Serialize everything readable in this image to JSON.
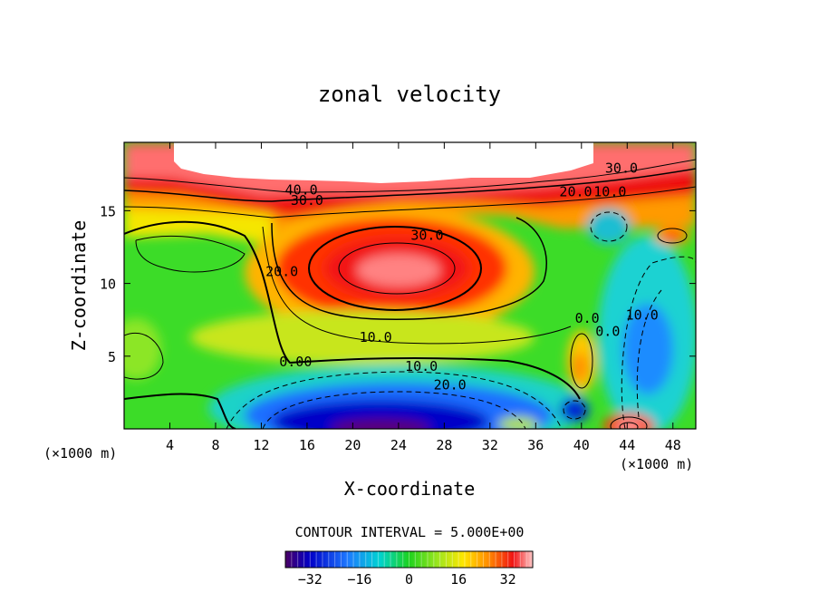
{
  "chart_data": {
    "type": "heatmap",
    "title": "zonal velocity",
    "xlabel": "X-coordinate",
    "ylabel": "Z-coordinate",
    "x_units": "(×1000 m)",
    "z_units": "(×1000 m)",
    "xlim": [
      0,
      50
    ],
    "ylim": [
      0,
      19.7
    ],
    "x_ticks": [
      "4",
      "8",
      "12",
      "16",
      "20",
      "24",
      "28",
      "32",
      "36",
      "40",
      "44",
      "48"
    ],
    "x_tick_values": [
      4,
      8,
      12,
      16,
      20,
      24,
      28,
      32,
      36,
      40,
      44,
      48
    ],
    "y_ticks": [
      "5",
      "10",
      "15"
    ],
    "y_tick_values": [
      5,
      10,
      15
    ],
    "contour_interval_text": "CONTOUR INTERVAL = 5.000E+00",
    "contour_interval": 5.0,
    "colorbar": {
      "min": -40,
      "max": 40,
      "ticks": [
        "−32",
        "−16",
        "0",
        "16",
        "32"
      ],
      "tick_values": [
        -32,
        -16,
        0,
        16,
        32
      ]
    },
    "contour_labels": [
      {
        "text": "40.0",
        "x": 15.5,
        "z": 16.1
      },
      {
        "text": "30.0",
        "x": 16.0,
        "z": 15.4
      },
      {
        "text": "30.0",
        "x": 26.5,
        "z": 13.0
      },
      {
        "text": "30.0",
        "x": 43.5,
        "z": 17.6
      },
      {
        "text": "20.0",
        "x": 39.5,
        "z": 16.0
      },
      {
        "text": "10.0",
        "x": 42.5,
        "z": 16.0
      },
      {
        "text": "20.0",
        "x": 13.8,
        "z": 10.5
      },
      {
        "text": "10.0",
        "x": 22.0,
        "z": 6.0
      },
      {
        "text": "0.00",
        "x": 15.0,
        "z": 4.3
      },
      {
        "text": "10.0",
        "x": 26.0,
        "z": 4.0
      },
      {
        "text": "20.0",
        "x": 28.5,
        "z": 2.7
      },
      {
        "text": "0.0",
        "x": 40.5,
        "z": 7.3
      },
      {
        "text": "0.0",
        "x": 42.3,
        "z": 6.4
      },
      {
        "text": "10.0",
        "x": 45.3,
        "z": 7.5
      }
    ],
    "peaks": [
      {
        "x": 23,
        "z": 10.5,
        "value": 38
      },
      {
        "x": 22,
        "z": 1.2,
        "value": -38
      },
      {
        "x": 44,
        "z": 1.0,
        "value": 30
      },
      {
        "x": 39.6,
        "z": 4.2,
        "value": 28
      },
      {
        "x": 40,
        "z": 1.5,
        "value": -25
      },
      {
        "x": 42.5,
        "z": 13.2,
        "value": -18
      },
      {
        "x": 46,
        "z": 13.5,
        "value": 30
      },
      {
        "x": 34,
        "z": 0.4,
        "value": 15
      },
      {
        "x": 1,
        "z": 5.5,
        "value": 14
      },
      {
        "x": 46,
        "z": 6.0,
        "value": -18
      }
    ]
  }
}
